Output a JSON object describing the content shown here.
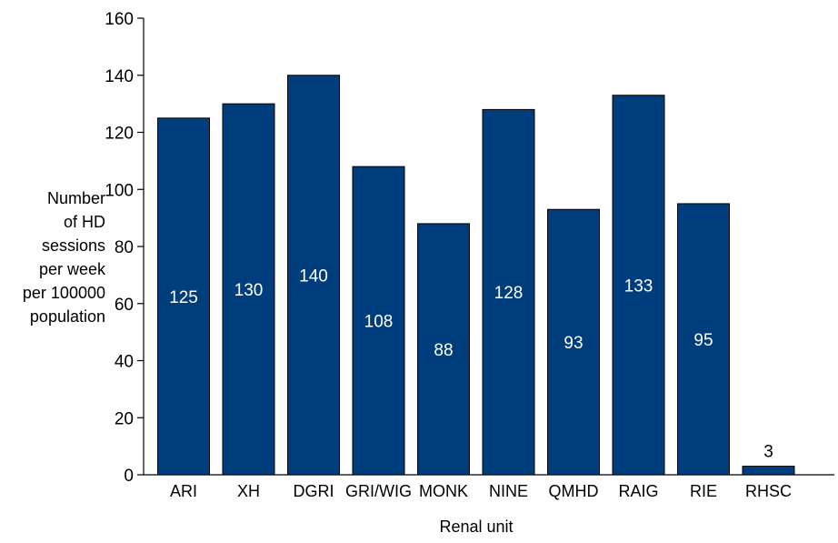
{
  "chart_data": {
    "type": "bar",
    "title": "",
    "xlabel": "Renal unit",
    "ylabel_lines": [
      "Number",
      "of HD",
      "sessions",
      "per week",
      "per 100000",
      "population"
    ],
    "categories": [
      "ARI",
      "XH",
      "DGRI",
      "GRI/WIG",
      "MONK",
      "NINE",
      "QMHD",
      "RAIG",
      "RIE",
      "RHSC"
    ],
    "values": [
      125,
      130,
      140,
      108,
      88,
      128,
      93,
      133,
      95,
      3
    ],
    "ylim": [
      0,
      160
    ],
    "yticks": [
      0,
      20,
      40,
      60,
      80,
      100,
      120,
      140,
      160
    ],
    "grid": false,
    "legend": "none",
    "colors": {
      "bar": "#003d7c",
      "bar_edge": "#000000",
      "label_inside": "#ffffff",
      "label_outside": "#000000"
    }
  }
}
